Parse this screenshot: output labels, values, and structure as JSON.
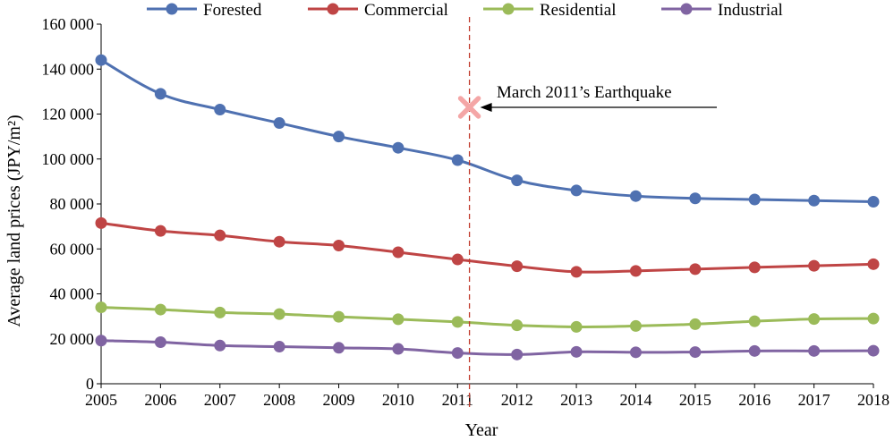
{
  "chart_data": {
    "type": "line",
    "title": "",
    "xlabel": "Year",
    "ylabel": "Average land prices (JPY/m²)",
    "ylim": [
      0,
      160000
    ],
    "yticks": [
      "0",
      "20 000",
      "40 000",
      "60 000",
      "80 000",
      "100 000",
      "120 000",
      "140 000",
      "160 000"
    ],
    "x": [
      2005,
      2006,
      2007,
      2008,
      2009,
      2010,
      2011,
      2012,
      2013,
      2014,
      2015,
      2016,
      2017,
      2018
    ],
    "legend_position": "top",
    "grid": false,
    "series": [
      {
        "name": "Forested",
        "color": "#4f71b1",
        "values": [
          144000,
          129000,
          122000,
          116000,
          110000,
          105000,
          99500,
          90500,
          86000,
          83500,
          82500,
          82000,
          81500,
          81000
        ]
      },
      {
        "name": "Commercial",
        "color": "#bf4545",
        "values": [
          71500,
          68000,
          66000,
          63200,
          61500,
          58500,
          55300,
          52300,
          49800,
          50200,
          51000,
          51800,
          52500,
          53200
        ]
      },
      {
        "name": "Residential",
        "color": "#9bbb59",
        "values": [
          34000,
          33000,
          31700,
          31000,
          29800,
          28700,
          27500,
          26000,
          25300,
          25700,
          26500,
          27800,
          28800,
          29000
        ]
      },
      {
        "name": "Industrial",
        "color": "#8064a2",
        "values": [
          19200,
          18500,
          17000,
          16500,
          16000,
          15500,
          13700,
          13000,
          14200,
          14000,
          14100,
          14600,
          14600,
          14700
        ]
      }
    ],
    "annotation": {
      "label": "March 2011’s Earthquake",
      "x": 2011.2,
      "y": 123000,
      "marker_color": "#f4a6a6",
      "line_color": "#c0392b"
    }
  }
}
